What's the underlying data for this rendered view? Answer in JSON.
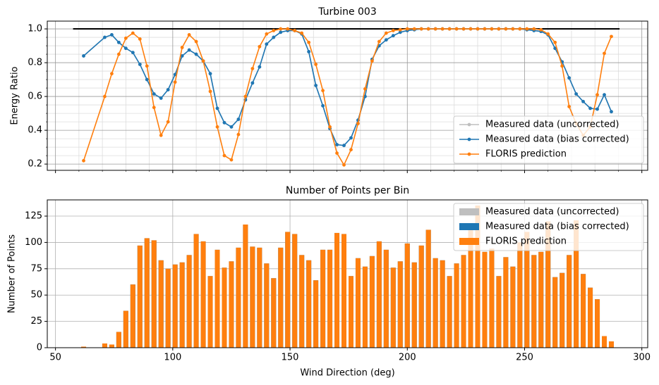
{
  "chart_data": [
    {
      "type": "line",
      "title": "Turbine 003",
      "ylabel": "Energy Ratio",
      "x": [
        62,
        71,
        74,
        77,
        80,
        83,
        86,
        89,
        92,
        95,
        98,
        101,
        104,
        107,
        110,
        113,
        116,
        119,
        122,
        125,
        128,
        131,
        134,
        137,
        140,
        143,
        146,
        149,
        152,
        155,
        158,
        161,
        164,
        167,
        170,
        173,
        176,
        179,
        182,
        185,
        188,
        191,
        194,
        197,
        200,
        203,
        206,
        209,
        212,
        215,
        218,
        221,
        224,
        227,
        230,
        233,
        236,
        239,
        242,
        245,
        248,
        251,
        254,
        257,
        260,
        263,
        266,
        269,
        272,
        275,
        278,
        281,
        284,
        287
      ],
      "series": [
        {
          "name": "Measured data (uncorrected)",
          "color": "#bfbfbf",
          "values": [
            0.84,
            0.95,
            0.965,
            0.92,
            0.885,
            0.86,
            0.79,
            0.7,
            0.615,
            0.59,
            0.64,
            0.73,
            0.84,
            0.875,
            0.85,
            0.81,
            0.735,
            0.53,
            0.445,
            0.42,
            0.465,
            0.58,
            0.68,
            0.775,
            0.91,
            0.95,
            0.98,
            0.99,
            0.99,
            0.97,
            0.865,
            0.665,
            0.545,
            0.41,
            0.315,
            0.31,
            0.355,
            0.46,
            0.6,
            0.82,
            0.9,
            0.935,
            0.96,
            0.98,
            0.99,
            0.995,
            1,
            1,
            1,
            1,
            1,
            1,
            1,
            1,
            1,
            1,
            1,
            1,
            1,
            1,
            1,
            0.995,
            0.99,
            0.985,
            0.965,
            0.885,
            0.805,
            0.71,
            0.615,
            0.57,
            0.53,
            0.525,
            0.61,
            0.51
          ]
        },
        {
          "name": "Measured data (bias corrected)",
          "color": "#1f77b4",
          "values": [
            0.84,
            0.95,
            0.965,
            0.92,
            0.885,
            0.86,
            0.79,
            0.7,
            0.615,
            0.59,
            0.64,
            0.73,
            0.84,
            0.875,
            0.85,
            0.81,
            0.735,
            0.53,
            0.445,
            0.42,
            0.465,
            0.58,
            0.68,
            0.775,
            0.91,
            0.95,
            0.98,
            0.99,
            0.99,
            0.97,
            0.865,
            0.665,
            0.545,
            0.41,
            0.315,
            0.31,
            0.355,
            0.46,
            0.6,
            0.82,
            0.9,
            0.935,
            0.96,
            0.98,
            0.99,
            0.995,
            1,
            1,
            1,
            1,
            1,
            1,
            1,
            1,
            1,
            1,
            1,
            1,
            1,
            1,
            1,
            0.995,
            0.99,
            0.985,
            0.965,
            0.885,
            0.805,
            0.71,
            0.615,
            0.57,
            0.53,
            0.525,
            0.61,
            0.51
          ]
        },
        {
          "name": "FLORIS prediction",
          "color": "#ff7f0e",
          "values": [
            0.22,
            0.6,
            0.735,
            0.85,
            0.945,
            0.975,
            0.94,
            0.78,
            0.535,
            0.37,
            0.45,
            0.685,
            0.89,
            0.965,
            0.925,
            0.81,
            0.63,
            0.42,
            0.25,
            0.225,
            0.375,
            0.6,
            0.765,
            0.895,
            0.97,
            0.99,
            1,
            1,
            0.99,
            0.975,
            0.92,
            0.79,
            0.635,
            0.42,
            0.265,
            0.195,
            0.285,
            0.44,
            0.645,
            0.81,
            0.925,
            0.975,
            0.99,
            0.995,
            1,
            1,
            1,
            1,
            1,
            1,
            1,
            1,
            1,
            1,
            1,
            1,
            1,
            1,
            1,
            1,
            1,
            1,
            1,
            0.995,
            0.97,
            0.92,
            0.78,
            0.54,
            0.44,
            0.37,
            0.42,
            0.61,
            0.855,
            0.955
          ]
        }
      ],
      "reference_line": {
        "color": "#000000",
        "x": [
          57.5,
          290.5
        ],
        "y": [
          1,
          1
        ]
      },
      "xlim": [
        46.5,
        302.5
      ],
      "ylim": [
        0.163,
        1.046
      ],
      "xticks": [
        50,
        100,
        150,
        200,
        250,
        300
      ],
      "yticks": [
        0.2,
        0.4,
        0.6,
        0.8,
        {
          "value": 1,
          "label": "1.0"
        }
      ],
      "xminorticks": [
        60,
        70,
        80,
        90,
        110,
        120,
        130,
        140,
        160,
        170,
        180,
        190,
        210,
        220,
        230,
        240,
        260,
        270,
        280,
        290
      ],
      "yminorticks": [
        0.25,
        0.3,
        0.35,
        0.45,
        0.5,
        0.55,
        0.65,
        0.7,
        0.75,
        0.85,
        0.9,
        0.95
      ],
      "grid": true,
      "minor_grid": true,
      "legend": "lower right"
    },
    {
      "type": "bar",
      "title": "Number of Points per Bin",
      "xlabel": "Wind Direction (deg)",
      "ylabel": "Number of Points",
      "x": [
        62,
        71,
        74,
        77,
        80,
        83,
        86,
        89,
        92,
        95,
        98,
        101,
        104,
        107,
        110,
        113,
        116,
        119,
        122,
        125,
        128,
        131,
        134,
        137,
        140,
        143,
        146,
        149,
        152,
        155,
        158,
        161,
        164,
        167,
        170,
        173,
        176,
        179,
        182,
        185,
        188,
        191,
        194,
        197,
        200,
        203,
        206,
        209,
        212,
        215,
        218,
        221,
        224,
        227,
        230,
        233,
        236,
        239,
        242,
        245,
        248,
        251,
        254,
        257,
        260,
        263,
        266,
        269,
        272,
        275,
        278,
        281,
        284,
        287
      ],
      "series": [
        {
          "name": "Measured data (uncorrected)",
          "color": "#bfbfbf",
          "values": [
            1,
            4,
            3,
            15,
            35,
            60,
            97,
            104,
            102,
            83,
            75,
            79,
            81,
            88,
            108,
            101,
            68,
            93,
            76,
            82,
            95,
            117,
            96,
            95,
            80,
            66,
            95,
            110,
            108,
            88,
            83,
            64,
            93,
            93,
            109,
            108,
            68,
            85,
            77,
            87,
            101,
            93,
            76,
            82,
            99,
            81,
            97,
            112,
            85,
            83,
            68,
            80,
            88,
            118,
            135,
            91,
            94,
            68,
            86,
            77,
            100,
            110,
            88,
            91,
            120,
            67,
            71,
            88,
            121,
            70,
            57,
            46,
            11,
            6
          ]
        },
        {
          "name": "Measured data (bias corrected)",
          "color": "#1f77b4",
          "values": [
            1,
            4,
            3,
            15,
            35,
            60,
            97,
            104,
            102,
            83,
            75,
            79,
            81,
            88,
            108,
            101,
            68,
            93,
            76,
            82,
            95,
            117,
            96,
            95,
            80,
            66,
            95,
            110,
            108,
            88,
            83,
            64,
            93,
            93,
            109,
            108,
            68,
            85,
            77,
            87,
            101,
            93,
            76,
            82,
            99,
            81,
            97,
            112,
            85,
            83,
            68,
            80,
            88,
            118,
            135,
            91,
            94,
            68,
            86,
            77,
            100,
            110,
            88,
            91,
            120,
            67,
            71,
            88,
            121,
            70,
            57,
            46,
            11,
            6
          ]
        },
        {
          "name": "FLORIS prediction",
          "color": "#ff7f0e",
          "values": [
            1,
            4,
            3,
            15,
            35,
            60,
            97,
            104,
            102,
            83,
            75,
            79,
            81,
            88,
            108,
            101,
            68,
            93,
            76,
            82,
            95,
            117,
            96,
            95,
            80,
            66,
            95,
            110,
            108,
            88,
            83,
            64,
            93,
            93,
            109,
            108,
            68,
            85,
            77,
            87,
            101,
            93,
            76,
            82,
            99,
            81,
            97,
            112,
            85,
            83,
            68,
            80,
            88,
            118,
            135,
            91,
            94,
            68,
            86,
            77,
            100,
            110,
            88,
            91,
            120,
            67,
            71,
            88,
            121,
            70,
            57,
            46,
            11,
            6
          ]
        }
      ],
      "xlim": [
        46.5,
        302.5
      ],
      "ylim": [
        0,
        140.4
      ],
      "xticks": [
        50,
        100,
        150,
        200,
        250,
        300
      ],
      "yticks": [
        0,
        25,
        50,
        75,
        100,
        125
      ],
      "grid": true,
      "legend": "upper right"
    }
  ]
}
